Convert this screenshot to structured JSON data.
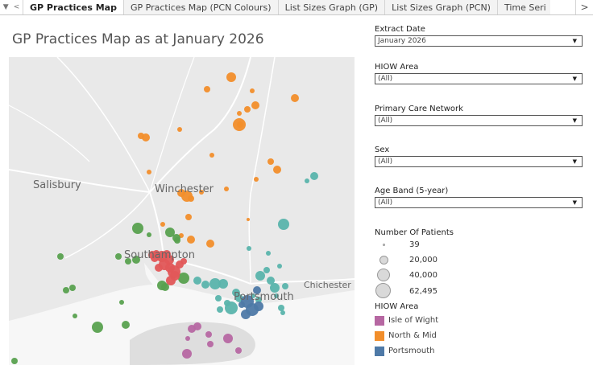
{
  "tabs": [
    {
      "label": "GP Practices Map",
      "active": true
    },
    {
      "label": "GP Practices Map (PCN Colours)"
    },
    {
      "label": "List Sizes Graph (GP)"
    },
    {
      "label": "List Sizes Graph (PCN)"
    },
    {
      "label": "Time Seri"
    }
  ],
  "title": "GP Practices Map as at January 2026",
  "map": {
    "labels": [
      "Salisbury",
      "Winchester",
      "Southampton",
      "Chichester",
      "Portsmouth"
    ],
    "colors": {
      "isle_of_wight": "#b667a2",
      "north_mid": "#f28e2b",
      "portsmouth": "#4e79a7",
      "south_east": "#5ab4ac",
      "south_west": "#59a14f",
      "southampton": "#e15759"
    }
  },
  "filters": [
    {
      "label": "Extract Date",
      "value": "January 2026"
    },
    {
      "label": "HIOW Area",
      "value": "(All)"
    },
    {
      "label": "Primary Care Network",
      "value": "(All)"
    },
    {
      "label": "Sex",
      "value": "(All)"
    },
    {
      "label": "Age Band (5-year)",
      "value": "(All)"
    }
  ],
  "size_legend": {
    "title": "Number Of Patients",
    "values": [
      "39",
      "20,000",
      "40,000",
      "62,495"
    ]
  },
  "color_legend": {
    "title": "HIOW Area",
    "items": [
      {
        "label": "Isle of Wight",
        "color": "#b667a2"
      },
      {
        "label": "North & Mid",
        "color": "#f28e2b"
      },
      {
        "label": "Portsmouth",
        "color": "#4e79a7"
      }
    ]
  }
}
